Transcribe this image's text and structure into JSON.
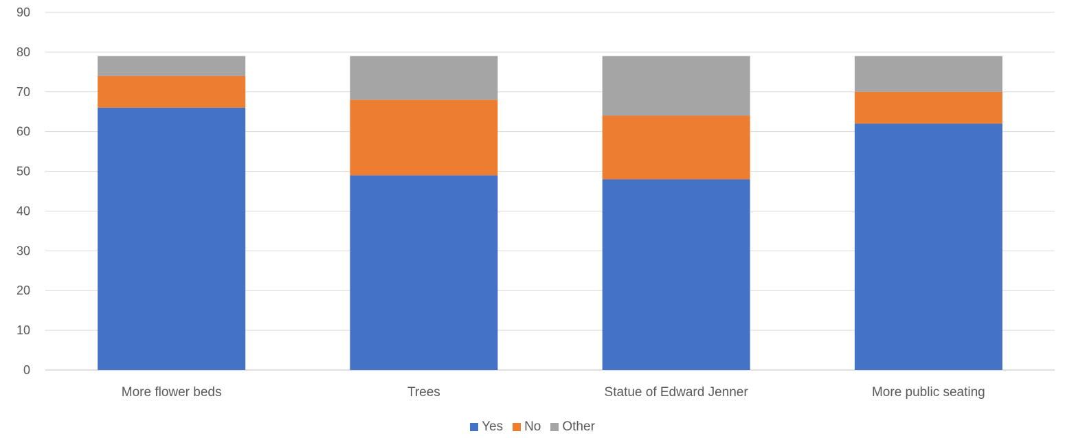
{
  "chart_data": {
    "type": "bar",
    "stacked": true,
    "title": "",
    "xlabel": "",
    "ylabel": "",
    "ylim": [
      0,
      90
    ],
    "yticks": [
      0,
      10,
      20,
      30,
      40,
      50,
      60,
      70,
      80,
      90
    ],
    "grid": true,
    "legend_position": "bottom",
    "categories": [
      "More flower beds",
      "Trees",
      "Statue of Edward Jenner",
      "More public seating"
    ],
    "series": [
      {
        "name": "Yes",
        "color": "#4472C4",
        "values": [
          66,
          49,
          48,
          62
        ]
      },
      {
        "name": "No",
        "color": "#ED7D31",
        "values": [
          8,
          19,
          16,
          8
        ]
      },
      {
        "name": "Other",
        "color": "#A5A5A5",
        "values": [
          5,
          11,
          15,
          9
        ]
      }
    ]
  }
}
